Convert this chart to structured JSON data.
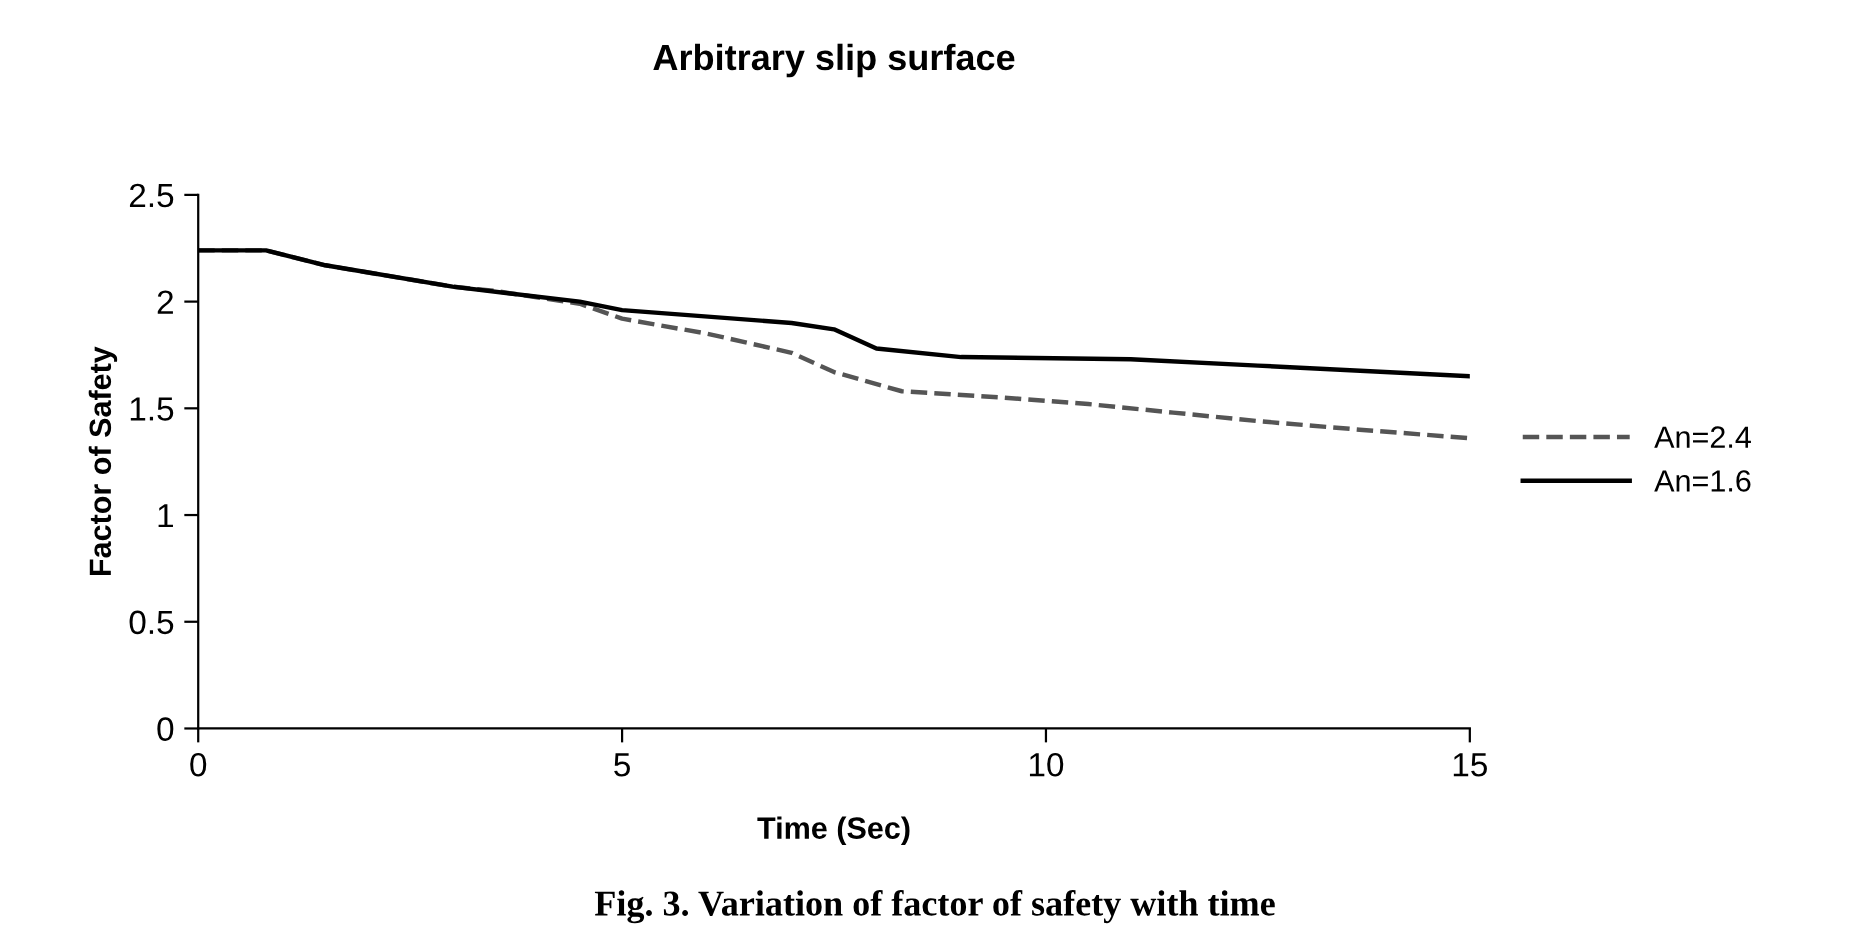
{
  "chart_data": {
    "type": "line",
    "title": "Arbitrary slip surface",
    "xlabel": "Time (Sec)",
    "ylabel": "Factor of Safety",
    "xlim": [
      0,
      15
    ],
    "xticks": [
      0,
      5,
      10,
      15
    ],
    "ylim": [
      0,
      2.5
    ],
    "yticks": [
      0,
      0.5,
      1,
      1.5,
      2,
      2.5
    ],
    "grid": false,
    "legend": "right",
    "marker": "none",
    "series": [
      {
        "name": "An=2.4",
        "color": "#555555",
        "line_style": "dashed",
        "x": [
          0,
          0.8,
          1.5,
          3,
          3.5,
          4.5,
          5,
          6,
          7,
          7.5,
          8.3,
          9.5,
          10.5,
          11.5,
          12.5,
          13.7,
          15
        ],
        "values": [
          2.24,
          2.24,
          2.17,
          2.07,
          2.05,
          1.99,
          1.92,
          1.85,
          1.76,
          1.67,
          1.58,
          1.55,
          1.52,
          1.48,
          1.44,
          1.4,
          1.36
        ]
      },
      {
        "name": "An=1.6",
        "color": "#000000",
        "line_style": "solid",
        "x": [
          0,
          0.8,
          1.5,
          3,
          4.5,
          5,
          7,
          7.5,
          8,
          9,
          11,
          12.5,
          14,
          15
        ],
        "values": [
          2.24,
          2.24,
          2.17,
          2.07,
          2.0,
          1.96,
          1.9,
          1.87,
          1.78,
          1.74,
          1.73,
          1.7,
          1.67,
          1.65
        ]
      }
    ],
    "annotations": [
      "Fig. 3. Variation of factor of safety with time"
    ]
  }
}
